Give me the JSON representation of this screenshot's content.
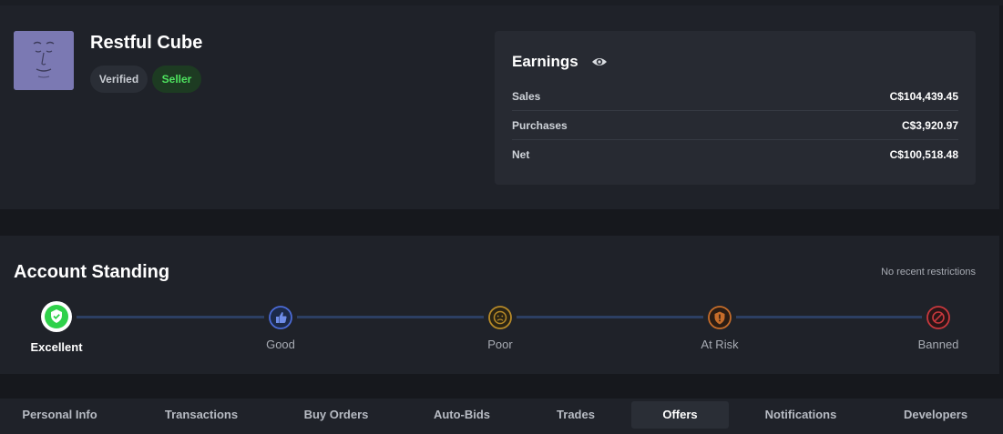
{
  "profile": {
    "username": "Restful Cube",
    "badges": {
      "verified": "Verified",
      "seller": "Seller"
    },
    "avatar_icon": "avatar-face-icon"
  },
  "earnings": {
    "title": "Earnings",
    "visibility_icon": "eye-icon",
    "rows": [
      {
        "label": "Sales",
        "value": "C$104,439.45"
      },
      {
        "label": "Purchases",
        "value": "C$3,920.97"
      },
      {
        "label": "Net",
        "value": "C$100,518.48"
      }
    ]
  },
  "standing": {
    "title": "Account Standing",
    "restrictions_text": "No recent restrictions",
    "current": "Excellent",
    "steps": [
      {
        "label": "Excellent",
        "icon": "check-shield-icon",
        "color": "#2fd14a"
      },
      {
        "label": "Good",
        "icon": "thumbs-up-icon",
        "color": "#4b6bd6"
      },
      {
        "label": "Poor",
        "icon": "sad-face-icon",
        "color": "#b78a28"
      },
      {
        "label": "At Risk",
        "icon": "warning-shield-icon",
        "color": "#c66d2a"
      },
      {
        "label": "Banned",
        "icon": "ban-icon",
        "color": "#c8383d"
      }
    ]
  },
  "tabs": {
    "active": "Offers",
    "items": [
      "Personal Info",
      "Transactions",
      "Buy Orders",
      "Auto-Bids",
      "Trades",
      "Offers",
      "Notifications",
      "Developers"
    ]
  }
}
